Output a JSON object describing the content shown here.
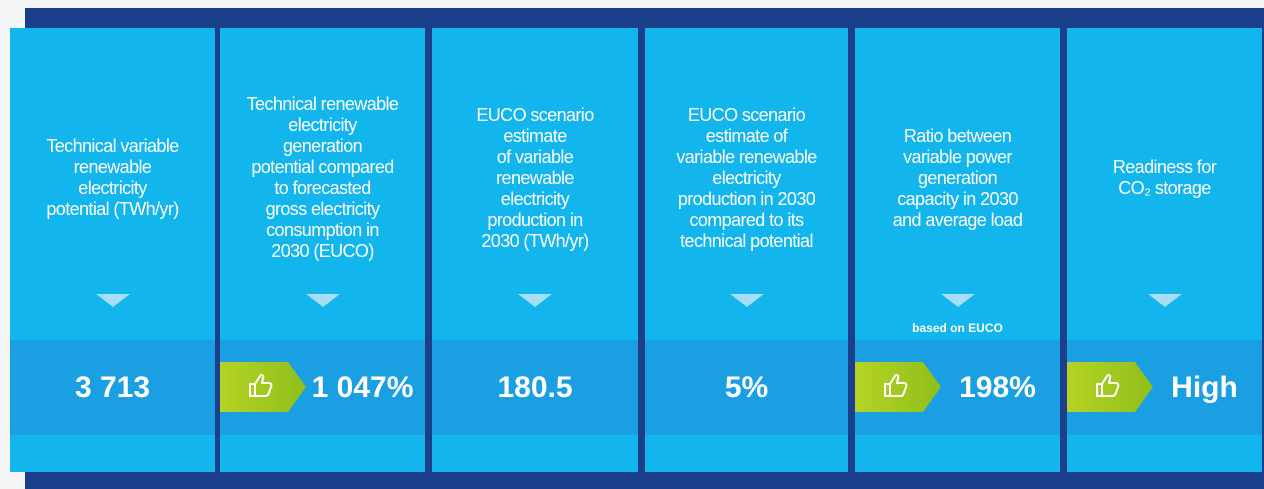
{
  "columns": [
    {
      "header": [
        "Technical variable",
        "renewable",
        "electricity",
        "potential (TWh/yr)"
      ],
      "value": "3 713",
      "thumbs_up": false
    },
    {
      "header": [
        "Technical renewable",
        "electricity",
        "generation",
        "potential compared",
        "to forecasted",
        "gross electricity",
        "consumption in",
        "2030 (EUCO)"
      ],
      "value": "1 047%",
      "thumbs_up": true
    },
    {
      "header": [
        "EUCO scenario",
        "estimate",
        "of variable",
        "renewable",
        "electricity",
        "production in",
        "2030 (TWh/yr)"
      ],
      "value": "180.5",
      "thumbs_up": false
    },
    {
      "header": [
        "EUCO scenario",
        "estimate of",
        "variable renewable",
        "electricity",
        "production in 2030",
        "compared to its",
        "technical potential"
      ],
      "value": "5%",
      "thumbs_up": false
    },
    {
      "header": [
        "Ratio between",
        "variable power",
        "generation",
        "capacity in 2030",
        "and average load"
      ],
      "note": "based on EUCO",
      "value": "198%",
      "thumbs_up": true
    },
    {
      "header": [
        "Readiness for",
        "CO₂ storage"
      ],
      "value": "High",
      "thumbs_up": true
    }
  ]
}
